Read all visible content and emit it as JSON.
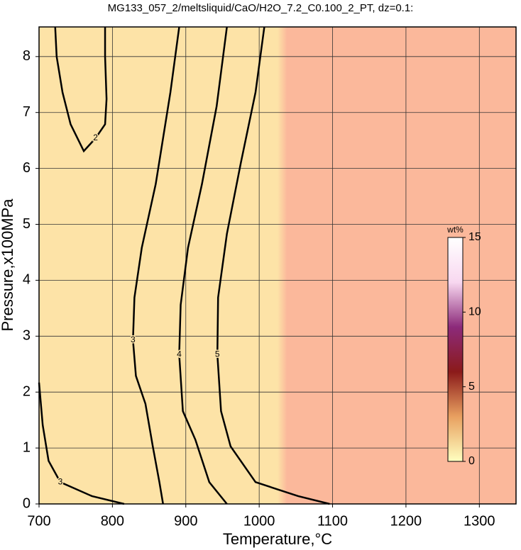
{
  "chart_data": {
    "type": "contour",
    "title": "MG133_057_2/meltsliquid/CaO/H2O_7.2_C0.100_2_PT, dz=0.1:",
    "x_label": "Temperature,°C",
    "y_label": "Pressure,x100MPa",
    "xlim": [
      700,
      1350
    ],
    "ylim": [
      0,
      8.53
    ],
    "xticks": [
      700,
      800,
      900,
      1000,
      1100,
      1200,
      1300
    ],
    "yticks": [
      0,
      1,
      2,
      3,
      4,
      5,
      6,
      7,
      8
    ],
    "grid": true,
    "background_colors": [
      "#fde3a7",
      "#fbb89b"
    ],
    "line_color": "#000000",
    "contours": [
      {
        "level": 2,
        "x": [
          722,
          724,
          732,
          743,
          761,
          777,
          790,
          792,
          790,
          790
        ],
        "y": [
          8.53,
          8.0,
          7.36,
          6.79,
          6.31,
          6.54,
          6.79,
          7.24,
          8.0,
          8.53
        ]
      },
      {
        "level": 3,
        "x": [
          891,
          879,
          859,
          840,
          830,
          828,
          832,
          845,
          855,
          864,
          869
        ],
        "y": [
          8.53,
          7.36,
          5.72,
          4.58,
          3.69,
          2.93,
          2.29,
          1.79,
          1.03,
          0.39,
          0
        ]
      },
      {
        "level": 3,
        "x": [
          700,
          705,
          713,
          729,
          772,
          816
        ],
        "y": [
          2.17,
          1.41,
          0.77,
          0.39,
          0.14,
          0
        ]
      },
      {
        "level": 4,
        "x": [
          956,
          942,
          922,
          903,
          893,
          891,
          896,
          913,
          932,
          956
        ],
        "y": [
          8.53,
          7.11,
          5.72,
          4.58,
          3.56,
          2.67,
          1.66,
          1.15,
          0.39,
          0
        ]
      },
      {
        "level": 5,
        "x": [
          1007,
          995,
          975,
          956,
          944,
          943,
          948,
          961,
          995,
          1053,
          1096
        ],
        "y": [
          8.53,
          7.36,
          6.1,
          4.83,
          3.69,
          2.67,
          1.66,
          1.03,
          0.39,
          0.14,
          0
        ]
      }
    ],
    "colorbar": {
      "label": "wt%",
      "lim": [
        0,
        15
      ],
      "ticks": [
        0,
        5,
        10,
        15
      ],
      "colors": [
        "#ffffc0",
        "#e8a060",
        "#8b1a1a",
        "#8c2a7a",
        "#f8d8f0",
        "#ffffff"
      ]
    }
  }
}
